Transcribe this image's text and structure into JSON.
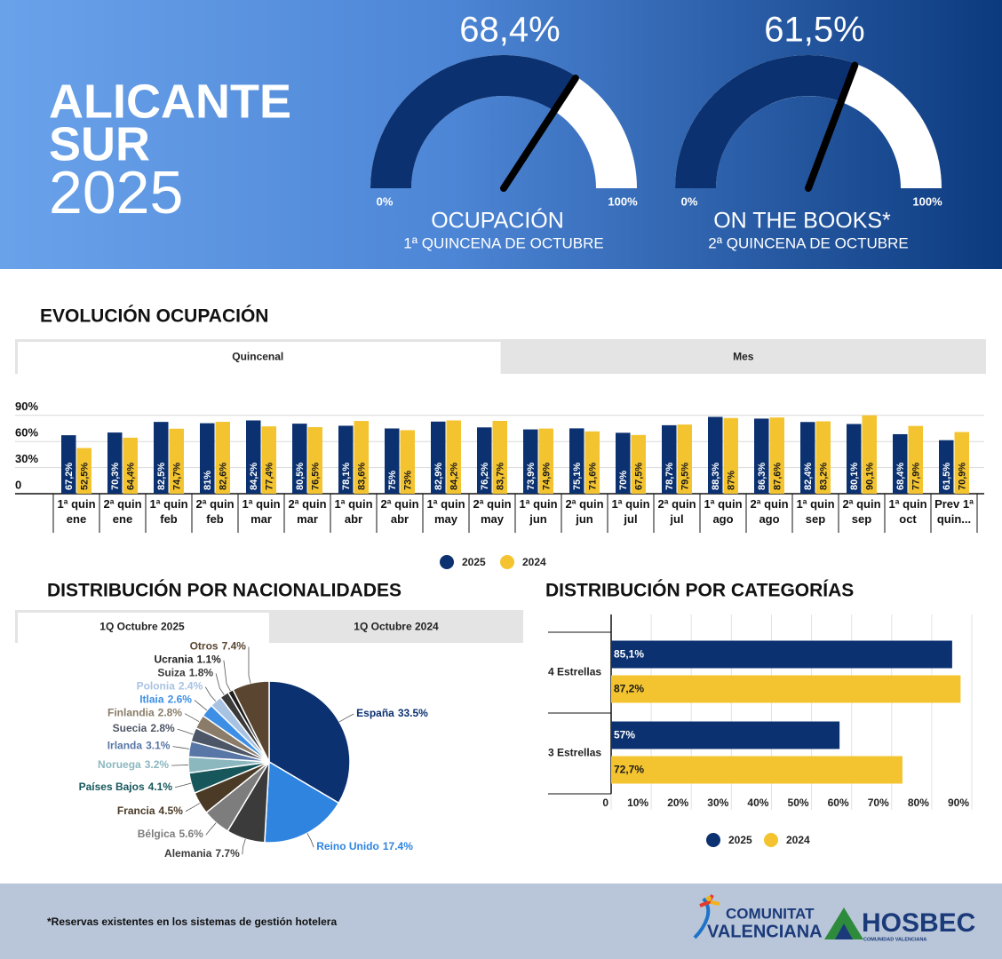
{
  "header": {
    "title_lines": [
      "ALICANTE",
      "SUR",
      "2025"
    ]
  },
  "chart_data": [
    {
      "type": "gauge",
      "title": "OCUPACIÓN",
      "subtitle": "1ª QUINCENA DE OCTUBRE",
      "value": 68.4,
      "value_label": "68,4%",
      "color": "#0b3170",
      "ylim": [
        0,
        100
      ],
      "yticks": [
        {
          "value": 0,
          "label": "0%"
        },
        {
          "value": 100,
          "label": "100%"
        }
      ]
    },
    {
      "type": "gauge",
      "title": "ON THE BOOKS*",
      "subtitle": "2ª QUINCENA DE OCTUBRE",
      "value": 61.5,
      "value_label": "61,5%",
      "color": "#0b3170",
      "ylim": [
        0,
        100
      ],
      "yticks": [
        {
          "value": 0,
          "label": "0%"
        },
        {
          "value": 100,
          "label": "100%"
        }
      ]
    },
    {
      "type": "bar",
      "title": "EVOLUCIÓN OCUPACIÓN",
      "tabs": [
        "Quincenal",
        "Mes"
      ],
      "categories": [
        "1ª quin ene",
        "2ª quin ene",
        "1ª quin feb",
        "2ª quin feb",
        "1ª quin mar",
        "2ª quin mar",
        "1ª quin abr",
        "2ª quin abr",
        "1ª quin may",
        "2ª quin may",
        "1ª quin jun",
        "2ª quin jun",
        "1ª quin jul",
        "2ª quin jul",
        "1ª quin ago",
        "2ª quin ago",
        "1ª quin sep",
        "2ª quin sep",
        "1ª quin oct",
        "Prev 1ª quin..."
      ],
      "series": [
        {
          "name": "2025",
          "color": "#0b3170",
          "values": [
            67.2,
            70.3,
            82.5,
            81,
            84.2,
            80.5,
            78.1,
            75,
            82.9,
            76.2,
            73.9,
            75.1,
            70,
            78.7,
            88.3,
            86.3,
            82.4,
            80.1,
            68.4,
            61.5
          ],
          "value_labels": [
            "67,2%",
            "70,3%",
            "82,5%",
            "81%",
            "84,2%",
            "80,5%",
            "78,1%",
            "75%",
            "82,9%",
            "76,2%",
            "73,9%",
            "75,1%",
            "70%",
            "78,7%",
            "88,3%",
            "86,3%",
            "82,4%",
            "80,1%",
            "68,4%",
            "61,5%"
          ]
        },
        {
          "name": "2024",
          "color": "#f4c430",
          "values": [
            52.5,
            64.4,
            74.7,
            82.6,
            77.4,
            76.5,
            83.6,
            73,
            84.2,
            83.7,
            74.9,
            71.6,
            67.5,
            79.5,
            87,
            87.6,
            83.2,
            90.1,
            77.9,
            70.9
          ],
          "value_labels": [
            "52,5%",
            "64,4%",
            "74,7%",
            "82,6%",
            "77,4%",
            "76,5%",
            "83,6%",
            "73%",
            "84,2%",
            "83,7%",
            "74,9%",
            "71,6%",
            "67,5%",
            "79,5%",
            "87%",
            "87,6%",
            "83,2%",
            "90,1%",
            "77,9%",
            "70,9%"
          ]
        }
      ],
      "ylim": [
        0,
        100
      ],
      "yticks": [
        0,
        {
          "value": 30,
          "label": "30%"
        },
        {
          "value": 60,
          "label": "60%"
        },
        {
          "value": 90,
          "label": "90%"
        }
      ],
      "grid": true
    },
    {
      "type": "pie",
      "title": "DISTRIBUCIÓN POR NACIONALIDADES",
      "tabs": [
        "1Q Octubre 2025",
        "1Q Octubre 2024"
      ],
      "categories": [
        "España",
        "Reino Unido",
        "Alemania",
        "Bélgica",
        "Francia",
        "Países Bajos",
        "Noruega",
        "Irlanda",
        "Suecia",
        "Finlandia",
        "Itlaia",
        "Polonia",
        "Suiza",
        "Ucrania",
        "Otros"
      ],
      "values": [
        33.5,
        17.4,
        7.7,
        5.6,
        4.5,
        4.1,
        3.2,
        3.1,
        2.8,
        2.8,
        2.6,
        2.4,
        1.8,
        1.1,
        7.4
      ],
      "value_labels": [
        "33.5%",
        "17.4%",
        "7.7%",
        "5.6%",
        "4.5%",
        "4.1%",
        "3.2%",
        "3.1%",
        "2.8%",
        "2.8%",
        "2.6%",
        "2.4%",
        "1.8%",
        "1.1%",
        "7.4%"
      ],
      "colors": [
        "#0b3170",
        "#2f84e0",
        "#3b3b3b",
        "#7d7d7d",
        "#4a3a26",
        "#17575c",
        "#8bb7bf",
        "#5877a6",
        "#4d5666",
        "#8a7c69",
        "#3d8fe6",
        "#a8c3e2",
        "#3a3a3a",
        "#1e1e1e",
        "#5a4630"
      ]
    },
    {
      "type": "hbar",
      "title": "DISTRIBUCIÓN POR CATEGORÍAS",
      "categories": [
        "4 Estrellas",
        "3 Estrellas"
      ],
      "series": [
        {
          "name": "2025",
          "color": "#0b3170",
          "values": [
            85.1,
            57
          ],
          "value_labels": [
            "85,1%",
            "57%"
          ]
        },
        {
          "name": "2024",
          "color": "#f4c430",
          "values": [
            87.2,
            72.7
          ],
          "value_labels": [
            "87,2%",
            "72,7%"
          ]
        }
      ],
      "xlim": [
        0,
        90
      ],
      "xticks": [
        0,
        {
          "value": 10,
          "label": "10%"
        },
        {
          "value": 20,
          "label": "20%"
        },
        {
          "value": 30,
          "label": "30%"
        },
        {
          "value": 40,
          "label": "40%"
        },
        {
          "value": 50,
          "label": "50%"
        },
        {
          "value": 60,
          "label": "60%"
        },
        {
          "value": 70,
          "label": "70%"
        },
        {
          "value": 80,
          "label": "80%"
        },
        {
          "value": 90,
          "label": "90%"
        }
      ],
      "grid": true
    }
  ],
  "footer": {
    "note": "*Reservas existentes en los sistemas de gestión hotelera",
    "logos": [
      "COMUNITAT",
      "VALENCIANA",
      "HOSBEC",
      "COMUNIDAD VALENCIANA"
    ]
  }
}
